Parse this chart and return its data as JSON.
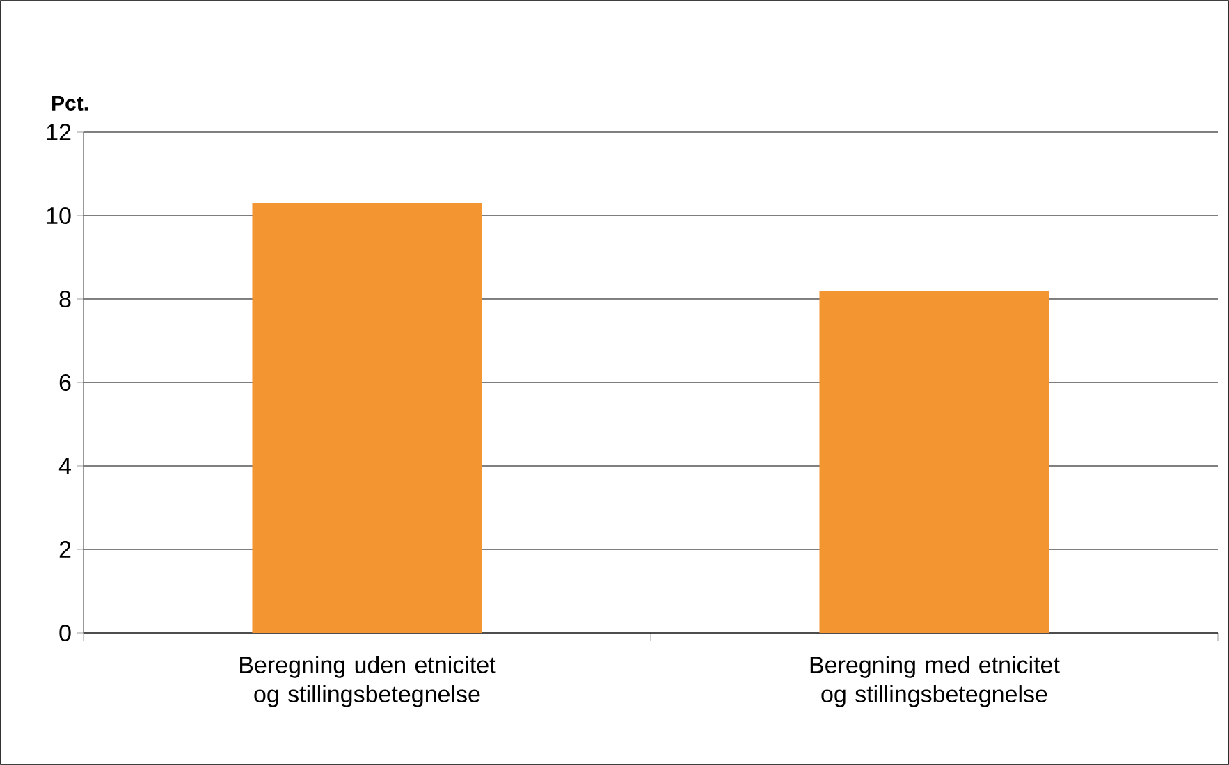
{
  "chart_data": {
    "type": "bar",
    "ylabel": "Pct.",
    "categories": [
      "Beregning uden etnicitet og stillingsbetegnelse",
      "Beregning med etnicitet og stillingsbetegnelse"
    ],
    "values": [
      10.3,
      8.2
    ],
    "color": "#f39530",
    "ylim": [
      0,
      12
    ],
    "yticks": [
      0,
      2,
      4,
      6,
      8,
      10,
      12
    ],
    "grid": "y"
  }
}
